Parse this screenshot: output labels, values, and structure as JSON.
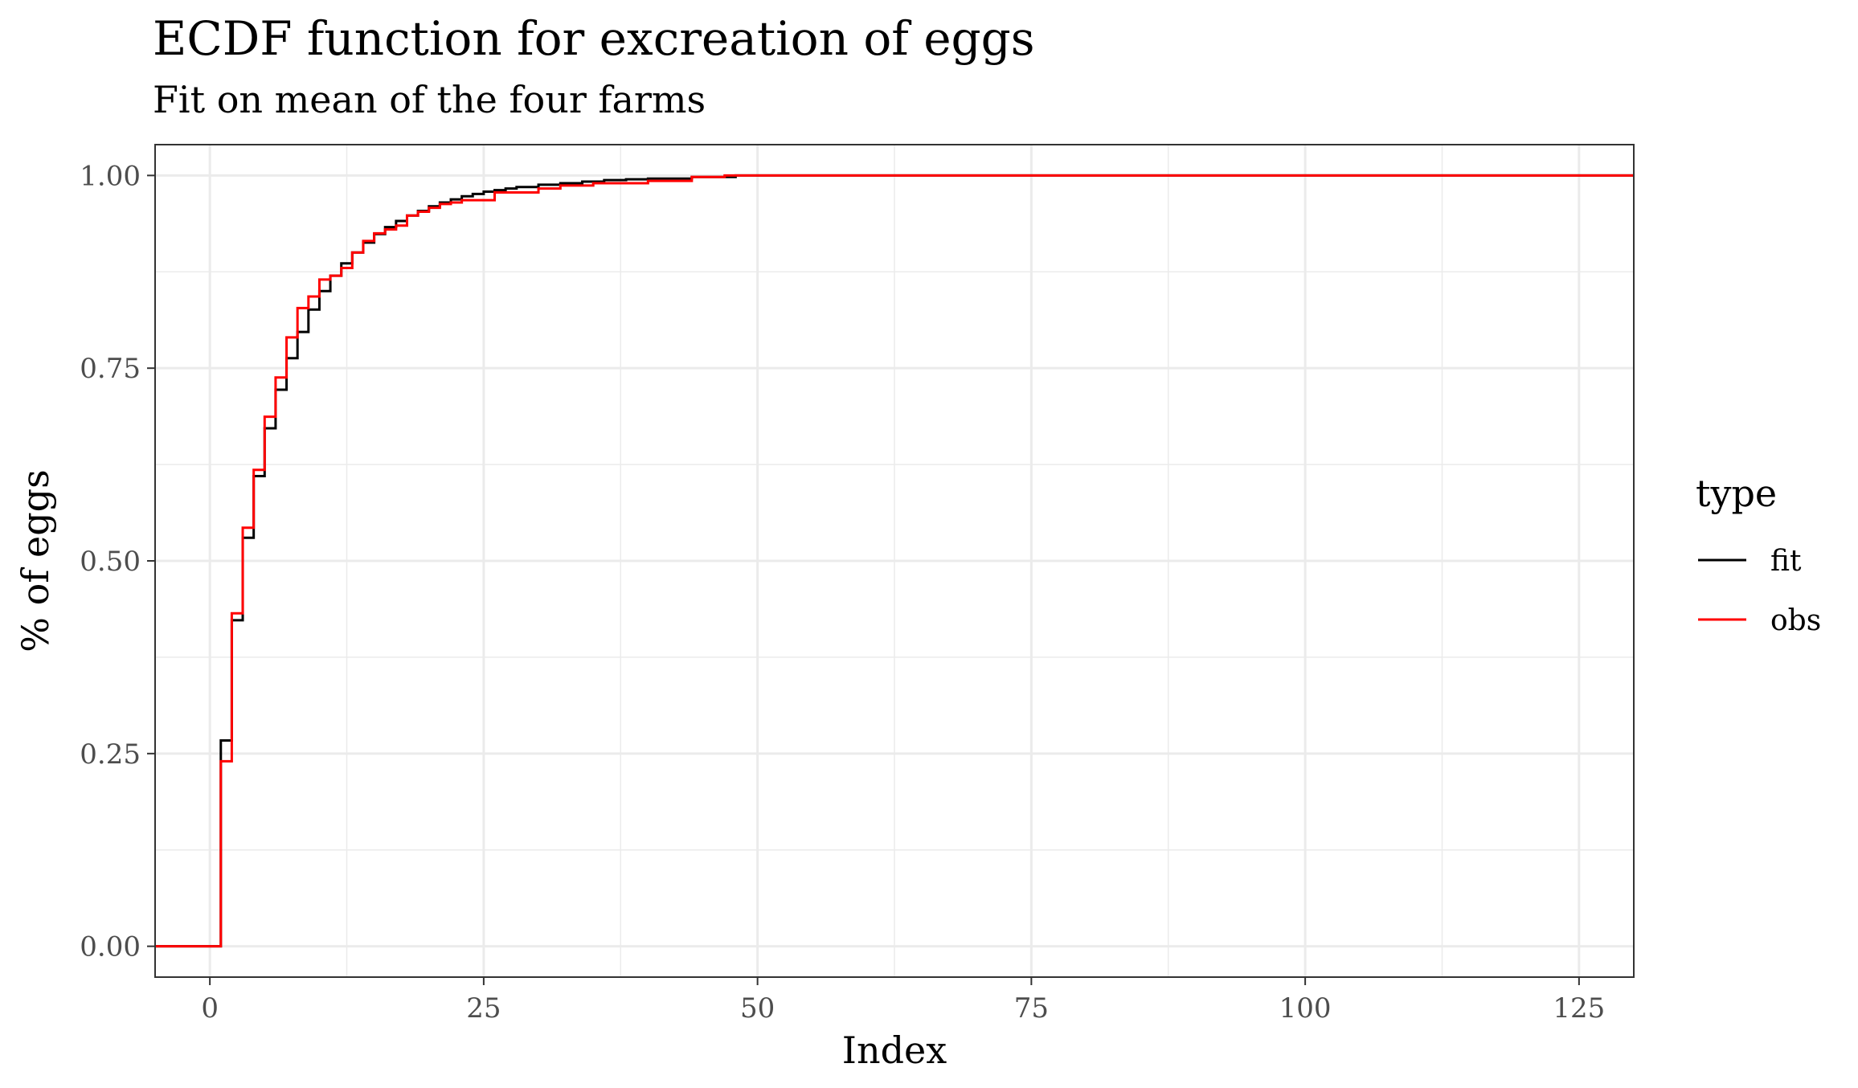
{
  "chart_data": {
    "type": "line",
    "step": true,
    "title": "ECDF function for excreation of eggs",
    "subtitle": "Fit on mean of the four farms",
    "xlabel": "Index",
    "ylabel": "% of eggs",
    "xlim": [
      -5,
      130
    ],
    "ylim": [
      -0.04,
      1.04
    ],
    "x_ticks": [
      0,
      25,
      50,
      75,
      100,
      125
    ],
    "x_tick_labels": [
      "0",
      "25",
      "50",
      "75",
      "100",
      "125"
    ],
    "y_ticks": [
      0,
      0.25,
      0.5,
      0.75,
      1.0
    ],
    "y_tick_labels": [
      "0.00",
      "0.25",
      "0.50",
      "0.75",
      "1.00"
    ],
    "grid": true,
    "legend": {
      "title": "type",
      "position": "right",
      "entries": [
        {
          "label": "fit",
          "color": "#000000"
        },
        {
          "label": "obs",
          "color": "#ff0000"
        }
      ]
    },
    "series": [
      {
        "name": "fit",
        "color": "#000000",
        "x": [
          -5,
          1,
          2,
          3,
          4,
          5,
          6,
          7,
          8,
          9,
          10,
          11,
          12,
          13,
          14,
          15,
          16,
          17,
          18,
          19,
          20,
          21,
          22,
          23,
          24,
          25,
          26,
          27,
          28,
          30,
          32,
          34,
          36,
          38,
          40,
          44,
          48,
          130
        ],
        "y": [
          0,
          0.267,
          0.423,
          0.53,
          0.61,
          0.672,
          0.722,
          0.763,
          0.797,
          0.826,
          0.85,
          0.87,
          0.886,
          0.9,
          0.913,
          0.924,
          0.933,
          0.941,
          0.948,
          0.954,
          0.96,
          0.965,
          0.969,
          0.973,
          0.976,
          0.979,
          0.981,
          0.983,
          0.985,
          0.988,
          0.99,
          0.992,
          0.994,
          0.995,
          0.996,
          0.998,
          1.0,
          1.0
        ]
      },
      {
        "name": "obs",
        "color": "#ff0000",
        "x": [
          -5,
          1,
          2,
          3,
          4,
          5,
          6,
          7,
          8,
          9,
          10,
          11,
          12,
          13,
          14,
          15,
          16,
          17,
          18,
          19,
          20,
          21,
          22,
          23,
          26,
          30,
          32,
          35,
          40,
          44,
          47,
          130
        ],
        "y": [
          0,
          0.24,
          0.432,
          0.543,
          0.618,
          0.687,
          0.738,
          0.79,
          0.828,
          0.843,
          0.865,
          0.87,
          0.88,
          0.9,
          0.915,
          0.925,
          0.93,
          0.935,
          0.948,
          0.953,
          0.958,
          0.963,
          0.965,
          0.968,
          0.978,
          0.983,
          0.987,
          0.99,
          0.993,
          0.998,
          1.0,
          1.0
        ]
      }
    ]
  }
}
